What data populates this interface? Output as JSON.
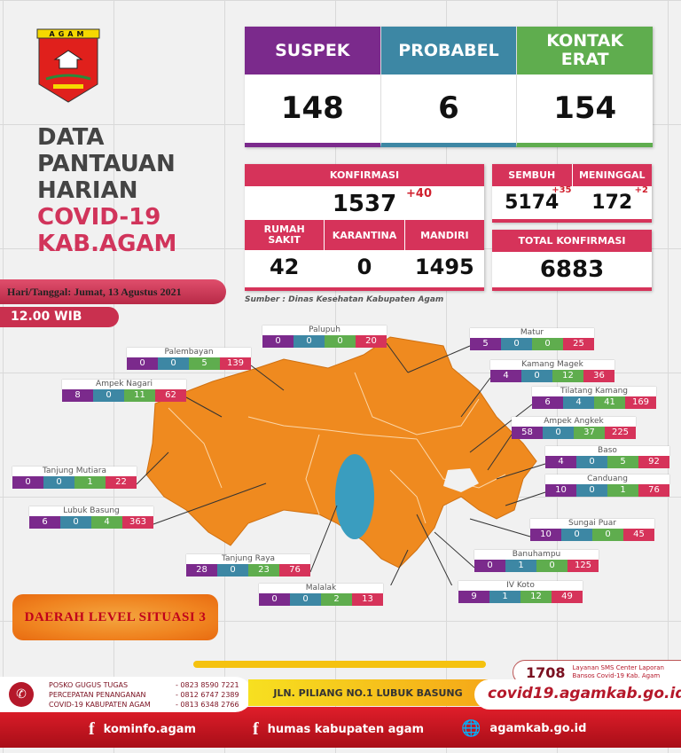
{
  "logo": {
    "text": "AGAM"
  },
  "title": {
    "line1": "DATA",
    "line2": "PANTAUAN",
    "line3": "HARIAN",
    "line4": "COVID-19",
    "line5": "KAB.AGAM"
  },
  "date": "Hari/Tanggal: Jumat, 13 Agustus 2021",
  "time": "12.00 WIB",
  "top_stats": [
    {
      "label": "SUSPEK",
      "value": "148",
      "color": "#7b2a8c"
    },
    {
      "label": "PROBABEL",
      "value": "6",
      "color": "#3d87a4"
    },
    {
      "label": "KONTAK ERAT",
      "value": "154",
      "color": "#5fad4e"
    }
  ],
  "konfirmasi": {
    "label": "KONFIRMASI",
    "value": "1537",
    "delta": "+40"
  },
  "sub": [
    {
      "label": "RUMAH SAKIT",
      "value": "42"
    },
    {
      "label": "KARANTINA",
      "value": "0"
    },
    {
      "label": "MANDIRI",
      "value": "1495"
    }
  ],
  "sembuh": {
    "label": "SEMBUH",
    "value": "5174",
    "delta": "+35"
  },
  "meninggal": {
    "label": "MENINGGAL",
    "value": "172",
    "delta": "+2"
  },
  "total": {
    "label": "TOTAL KONFIRMASI",
    "value": "6883"
  },
  "source": "Sumber : Dinas Kesehatan Kabupaten Agam",
  "colors": {
    "suspek": "#7b2a8c",
    "probabel": "#3d87a4",
    "kontak": "#5fad4e",
    "konfirmasi": "#d6335a",
    "map": "#ef8a1f",
    "lake": "#3a9dbf"
  },
  "regions": [
    {
      "name": "Palupuh",
      "values": [
        0,
        0,
        0,
        20
      ]
    },
    {
      "name": "Palembayan",
      "values": [
        0,
        0,
        5,
        139
      ]
    },
    {
      "name": "Ampek Nagari",
      "values": [
        8,
        0,
        11,
        62
      ]
    },
    {
      "name": "Matur",
      "values": [
        5,
        0,
        0,
        25
      ]
    },
    {
      "name": "Kamang Magek",
      "values": [
        4,
        0,
        12,
        36
      ]
    },
    {
      "name": "Tilatang Kamang",
      "values": [
        6,
        4,
        41,
        169
      ]
    },
    {
      "name": "Ampek Angkek",
      "values": [
        58,
        0,
        37,
        225
      ]
    },
    {
      "name": "Baso",
      "values": [
        4,
        0,
        5,
        92
      ]
    },
    {
      "name": "Canduang",
      "values": [
        10,
        0,
        1,
        76
      ]
    },
    {
      "name": "Sungai Puar",
      "values": [
        10,
        0,
        0,
        45
      ]
    },
    {
      "name": "Banuhampu",
      "values": [
        0,
        1,
        0,
        125
      ]
    },
    {
      "name": "IV Koto",
      "values": [
        9,
        1,
        12,
        49
      ]
    },
    {
      "name": "Malalak",
      "values": [
        0,
        0,
        2,
        13
      ]
    },
    {
      "name": "Tanjung Raya",
      "values": [
        28,
        0,
        23,
        76
      ]
    },
    {
      "name": "Lubuk Basung",
      "values": [
        6,
        0,
        4,
        363
      ]
    },
    {
      "name": "Tanjung Mutiara",
      "values": [
        0,
        0,
        1,
        22
      ]
    }
  ],
  "level": "DAERAH LEVEL SITUASI 3",
  "footer": {
    "posko": [
      "POSKO GUGUS TUGAS",
      "PERCEPATAN PENANGANAN",
      "COVID-19 KABUPATEN AGAM"
    ],
    "phones": [
      "- 0823 8590 7221",
      "- 0812 6747 2389",
      "- 0813 6348 2766"
    ],
    "address": "JLN. PILIANG NO.1 LUBUK BASUNG",
    "sms_number": "1708",
    "sms_text": "Layanan SMS Center Laporan Bansos Covid-19 Kab. Agam",
    "website": "covid19.agamkab.go.id",
    "facebook1": "kominfo.agam",
    "facebook2": "humas kabupaten agam",
    "site": "agamkab.go.id"
  }
}
